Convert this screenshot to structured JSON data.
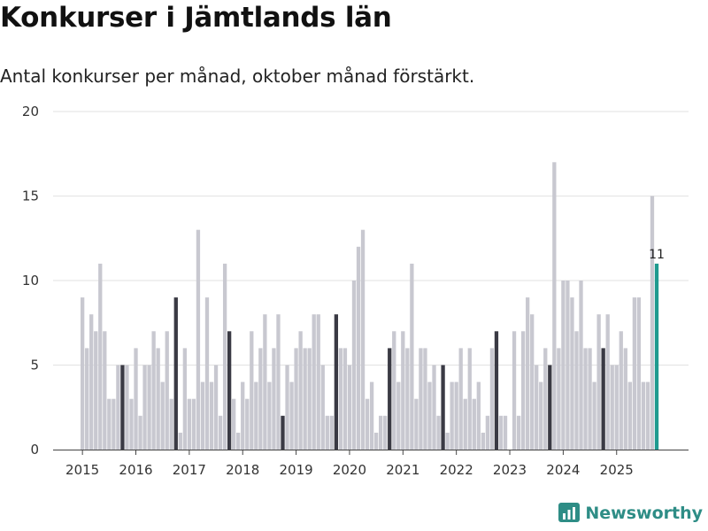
{
  "chart_data": {
    "type": "bar",
    "title": "Konkurser i Jämtlands län",
    "subtitle": "Antal konkurser per månad, oktober månad förstärkt.",
    "xlabel": "",
    "ylabel": "",
    "ylim": [
      0,
      20
    ],
    "yticks": [
      0,
      5,
      10,
      15,
      20
    ],
    "year_labels": [
      "2015",
      "2016",
      "2017",
      "2018",
      "2019",
      "2020",
      "2021",
      "2022",
      "2023",
      "2024",
      "2025"
    ],
    "start": "2015-01",
    "values": [
      9,
      6,
      8,
      7,
      11,
      7,
      3,
      3,
      5,
      5,
      5,
      3,
      6,
      2,
      5,
      5,
      7,
      6,
      4,
      7,
      3,
      9,
      1,
      6,
      3,
      3,
      13,
      4,
      9,
      4,
      5,
      2,
      11,
      7,
      3,
      1,
      4,
      3,
      7,
      4,
      6,
      8,
      4,
      6,
      8,
      2,
      5,
      4,
      6,
      7,
      6,
      6,
      8,
      8,
      5,
      2,
      2,
      8,
      6,
      6,
      5,
      10,
      12,
      13,
      3,
      4,
      1,
      2,
      2,
      6,
      7,
      4,
      7,
      6,
      11,
      3,
      6,
      6,
      4,
      5,
      2,
      5,
      1,
      4,
      4,
      6,
      3,
      6,
      3,
      4,
      1,
      2,
      6,
      7,
      2,
      2,
      0,
      7,
      2,
      7,
      9,
      8,
      5,
      4,
      6,
      5,
      17,
      6,
      10,
      10,
      9,
      7,
      10,
      6,
      6,
      4,
      8,
      6,
      8,
      5,
      5,
      7,
      6,
      4,
      9,
      9,
      4,
      4,
      15,
      11
    ],
    "highlight_month": "oktober",
    "latest_value_label": "11",
    "colors": {
      "bar": "#c8c8d0",
      "highlight": "#3a3a44",
      "latest": "#1f9a8f",
      "grid": "#e2e2e2",
      "axis": "#444444"
    }
  },
  "brand": {
    "name": "Newsworthy",
    "color": "#2e8d86",
    "icon": "bar-chart-logo-icon"
  }
}
